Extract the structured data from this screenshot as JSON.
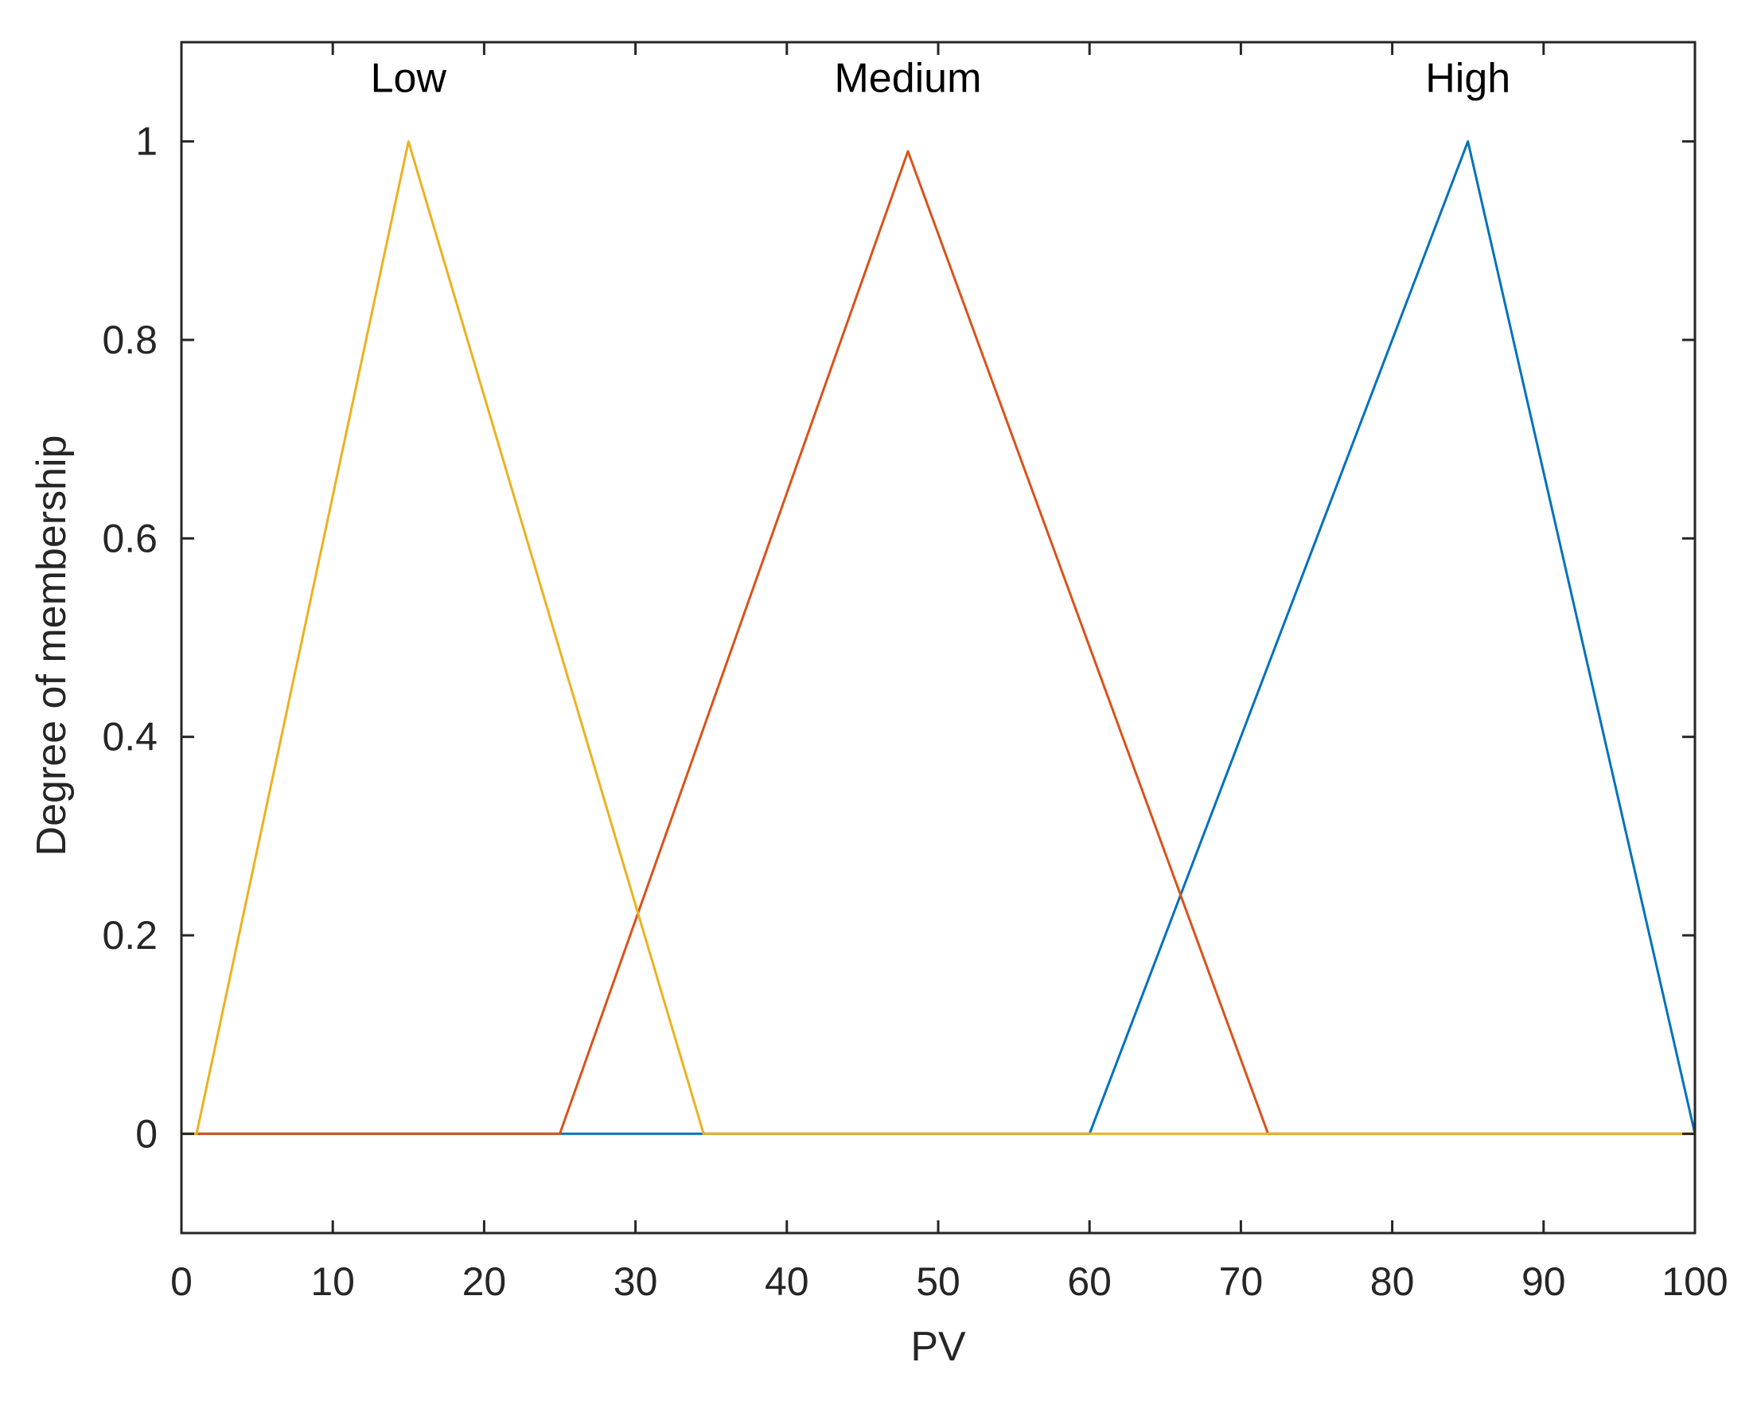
{
  "chart_data": {
    "type": "line",
    "title": "",
    "xlabel": "PV",
    "ylabel": "Degree of membership",
    "xlim": [
      0,
      100
    ],
    "ylim": [
      -0.1,
      1.1
    ],
    "x_ticks": [
      0,
      10,
      20,
      30,
      40,
      50,
      60,
      70,
      80,
      90,
      100
    ],
    "x_tick_labels": [
      "0",
      "10",
      "20",
      "30",
      "40",
      "50",
      "60",
      "70",
      "80",
      "90",
      "100"
    ],
    "y_ticks": [
      0,
      0.2,
      0.4,
      0.6,
      0.8,
      1
    ],
    "y_tick_labels": [
      "0",
      "0.2",
      "0.4",
      "0.6",
      "0.8",
      "1"
    ],
    "grid": false,
    "series": [
      {
        "name": "Low",
        "label": "Low",
        "color": "#EDB120",
        "x": [
          0,
          1,
          15,
          34.5,
          100
        ],
        "y": [
          0,
          0,
          1,
          0,
          0
        ],
        "label_pos": [
          15,
          1.05
        ]
      },
      {
        "name": "Medium",
        "label": "Medium",
        "color": "#D95319",
        "x": [
          0,
          25,
          48,
          71.8,
          100
        ],
        "y": [
          0,
          0,
          0.99,
          0,
          0
        ],
        "label_pos": [
          48,
          1.05
        ]
      },
      {
        "name": "High",
        "label": "High",
        "color": "#0072BD",
        "x": [
          0,
          60,
          85,
          100
        ],
        "y": [
          0,
          0,
          1,
          0
        ],
        "label_pos": [
          85,
          1.05
        ]
      }
    ]
  }
}
